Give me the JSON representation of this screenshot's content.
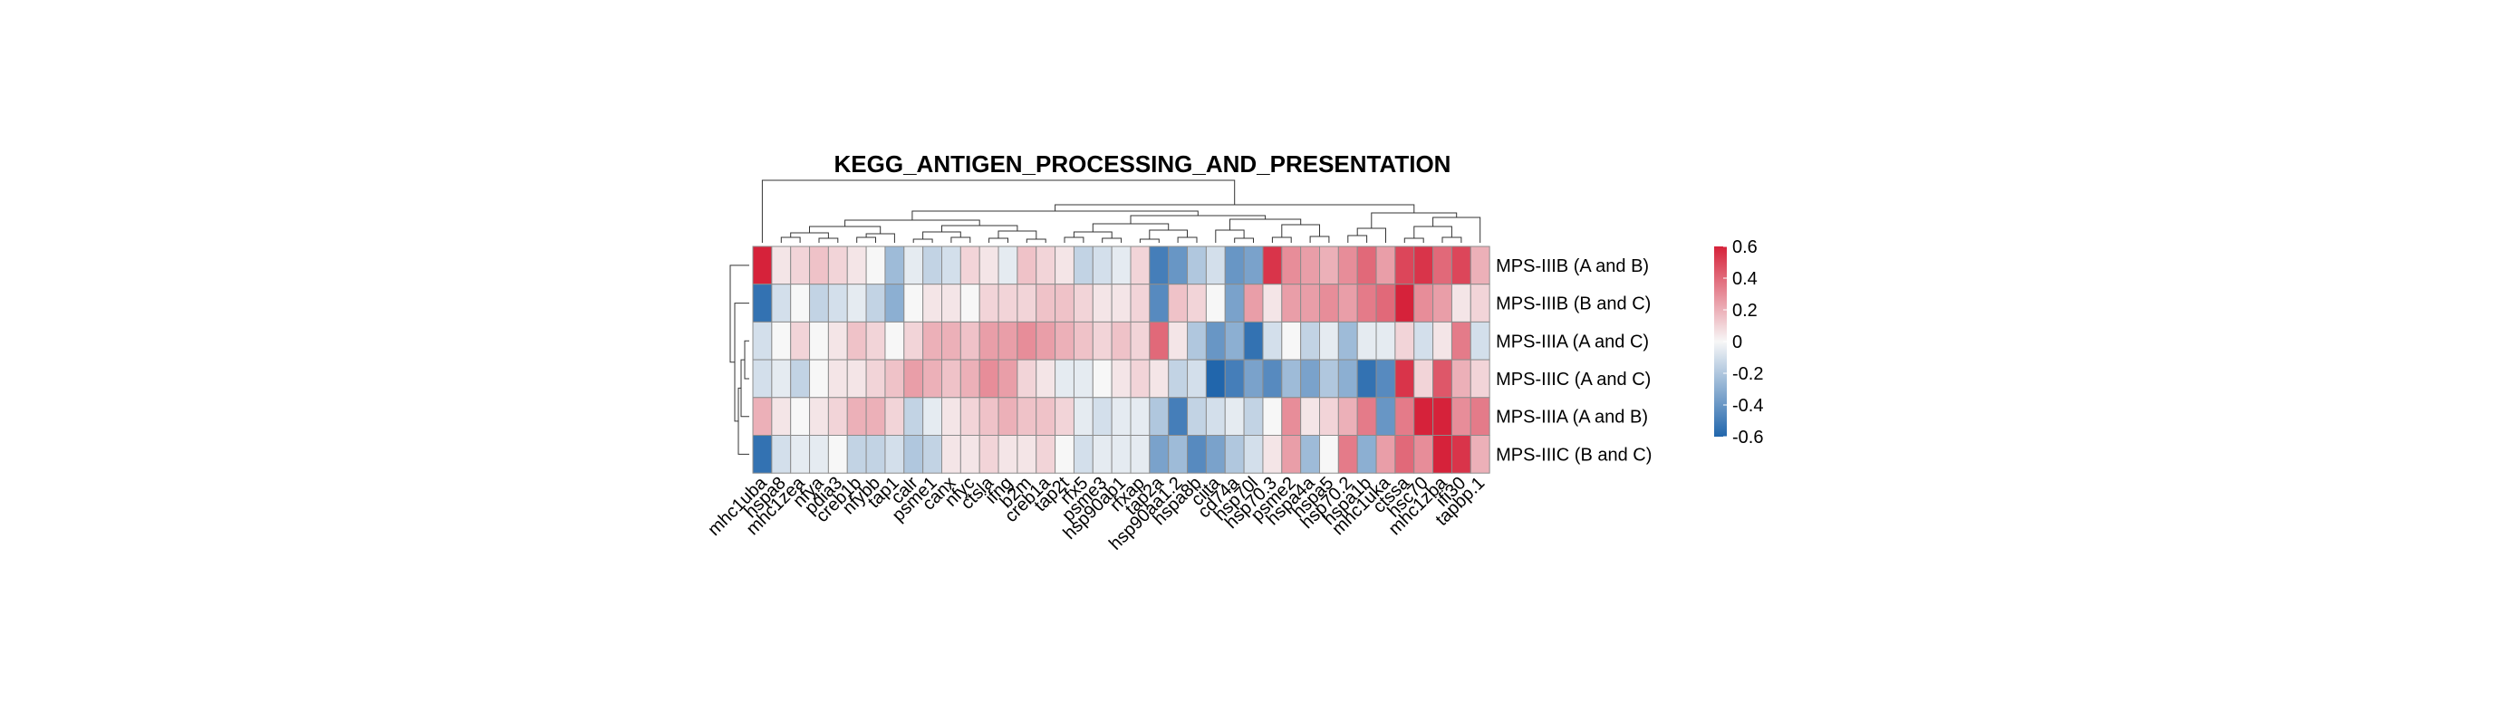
{
  "chart_data": {
    "type": "heatmap",
    "title": "KEGG_ANTIGEN_PROCESSING_AND_PRESENTATION",
    "rows": [
      "MPS-IIIB (A and B)",
      "MPS-IIIB (B and C)",
      "MPS-IIIA (A and C)",
      "MPS-IIIC (A and C)",
      "MPS-IIIA (A and B)",
      "MPS-IIIC (B and C)"
    ],
    "columns": [
      "mhc1uba",
      "hspa8",
      "mhc1zea",
      "nfya",
      "pdia3",
      "creb1b",
      "nfybb",
      "tap1",
      "calr",
      "psme1",
      "canx",
      "nfyc",
      "ctsla",
      "ifng",
      "b2m",
      "creb1a",
      "tap2t",
      "rfx5",
      "psme3",
      "hsp90ab1",
      "rfxap",
      "tap2a",
      "hsp90aa1.2",
      "hspa8b",
      "ciita",
      "cd74a",
      "hsp70l",
      "hsp70.3",
      "psme2",
      "hspa4a",
      "hspa5",
      "hsp70.2",
      "hspa1b",
      "mhc1uka",
      "ctssa",
      "hsc70",
      "mhc1zba",
      "ifi30",
      "tapbp.1"
    ],
    "values": [
      [
        0.6,
        0.05,
        0.1,
        0.15,
        0.1,
        0.05,
        0.0,
        -0.25,
        -0.05,
        -0.15,
        -0.1,
        0.1,
        0.05,
        -0.05,
        0.15,
        0.1,
        0.05,
        -0.15,
        -0.1,
        -0.05,
        0.1,
        -0.5,
        -0.4,
        -0.2,
        -0.1,
        -0.4,
        -0.35,
        0.55,
        0.3,
        0.25,
        0.2,
        0.3,
        0.4,
        0.25,
        0.5,
        0.55,
        0.4,
        0.5,
        0.2
      ],
      [
        -0.55,
        -0.1,
        0.0,
        -0.15,
        -0.1,
        -0.05,
        -0.15,
        -0.3,
        0.0,
        0.05,
        0.05,
        0.0,
        0.1,
        0.1,
        0.1,
        0.15,
        0.15,
        0.1,
        0.05,
        0.05,
        0.1,
        -0.45,
        0.15,
        0.1,
        0.0,
        -0.35,
        0.25,
        0.05,
        0.25,
        0.25,
        0.3,
        0.25,
        0.35,
        0.4,
        0.6,
        0.3,
        0.25,
        0.05,
        0.1
      ],
      [
        -0.1,
        0.0,
        0.1,
        0.0,
        0.05,
        0.15,
        0.1,
        0.0,
        0.1,
        0.2,
        0.2,
        0.15,
        0.25,
        0.25,
        0.3,
        0.25,
        0.2,
        0.15,
        0.1,
        0.15,
        0.1,
        0.4,
        0.05,
        -0.2,
        -0.4,
        -0.3,
        -0.55,
        -0.1,
        0.0,
        -0.15,
        -0.05,
        -0.25,
        -0.05,
        -0.05,
        0.1,
        -0.1,
        0.05,
        0.35,
        -0.1
      ],
      [
        -0.1,
        -0.05,
        -0.15,
        0.0,
        0.05,
        0.05,
        0.1,
        0.15,
        0.25,
        0.2,
        0.15,
        0.2,
        0.3,
        0.25,
        0.1,
        0.05,
        -0.05,
        -0.05,
        0.0,
        0.05,
        0.1,
        0.05,
        -0.15,
        -0.1,
        -0.65,
        -0.5,
        -0.35,
        -0.45,
        -0.25,
        -0.35,
        -0.2,
        -0.3,
        -0.55,
        -0.45,
        0.55,
        0.1,
        0.45,
        0.2,
        0.1
      ],
      [
        0.2,
        0.05,
        0.0,
        0.05,
        0.1,
        0.2,
        0.2,
        0.1,
        -0.15,
        -0.05,
        0.05,
        0.1,
        0.15,
        0.2,
        0.15,
        0.15,
        0.1,
        -0.05,
        -0.1,
        -0.05,
        -0.05,
        -0.2,
        -0.5,
        -0.15,
        -0.1,
        -0.05,
        -0.15,
        0.0,
        0.3,
        0.05,
        0.1,
        0.2,
        0.35,
        -0.4,
        0.35,
        0.7,
        0.7,
        0.3,
        0.35
      ],
      [
        -0.55,
        -0.1,
        -0.05,
        -0.05,
        0.0,
        -0.15,
        -0.15,
        -0.1,
        -0.2,
        -0.15,
        0.05,
        0.05,
        0.1,
        0.05,
        0.05,
        0.1,
        0.0,
        -0.1,
        -0.05,
        -0.05,
        -0.05,
        -0.35,
        -0.25,
        -0.45,
        -0.35,
        -0.2,
        -0.1,
        0.05,
        0.25,
        -0.25,
        0.0,
        0.35,
        -0.3,
        0.25,
        0.4,
        0.3,
        0.6,
        0.55,
        0.2
      ]
    ],
    "colorbar": {
      "min": -0.6,
      "max": 0.6,
      "ticks": [
        "0.6",
        "0.4",
        "0.2",
        "0",
        "-0.2",
        "-0.4",
        "-0.6"
      ],
      "low_color": "#2166ac",
      "mid_color": "#f7f7f7",
      "high_color": "#d6223a"
    }
  }
}
